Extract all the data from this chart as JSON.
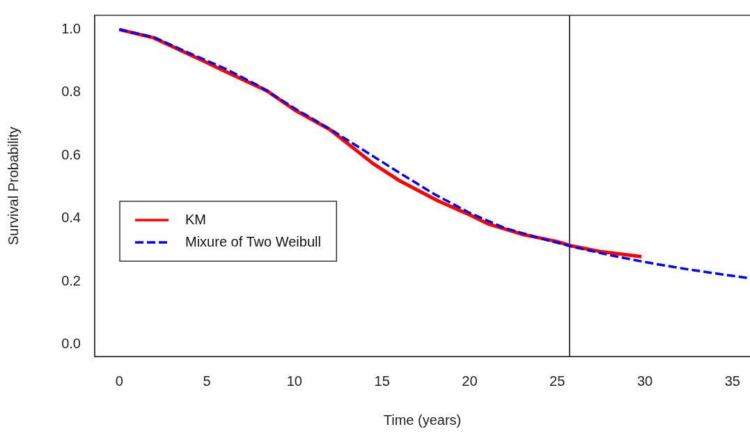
{
  "chart_data": {
    "type": "line",
    "xlabel": "Time (years)",
    "ylabel": "Survival Probability",
    "xlim": [
      -1.4,
      36
    ],
    "xticks": [
      0,
      5,
      10,
      15,
      20,
      25,
      30,
      35
    ],
    "ylim": [
      -0.038,
      1.045
    ],
    "yticks": [
      {
        "value": 0,
        "label": "0.0"
      },
      {
        "value": 0.2,
        "label": "0.2"
      },
      {
        "value": 0.4,
        "label": "0.4"
      },
      {
        "value": 0.6,
        "label": "0.6"
      },
      {
        "value": 0.8,
        "label": "0.8"
      },
      {
        "value": 1,
        "label": "1.0"
      }
    ],
    "grid": false,
    "legend": "left",
    "marker": "none",
    "series": [
      {
        "name": "KM",
        "color": "#ff0000",
        "line_style": "solid",
        "x": [
          0,
          1.94,
          4.84,
          6.0,
          8.41,
          10,
          12,
          14.5,
          16,
          18.2,
          20,
          21.1,
          23,
          25.0,
          25.75,
          27.4,
          29.8
        ],
        "values": [
          1.0,
          0.974,
          0.899,
          0.868,
          0.806,
          0.745,
          0.683,
          0.574,
          0.52,
          0.456,
          0.412,
          0.382,
          0.35,
          0.327,
          0.314,
          0.296,
          0.279
        ]
      },
      {
        "name": "Mixure of Two Weibull",
        "color": "#0000ff",
        "line_style": "dashed",
        "x": [
          0,
          2,
          4,
          6,
          8,
          10,
          12,
          14,
          16,
          18,
          20,
          22,
          24,
          26,
          28,
          30,
          32,
          34,
          35.95
        ],
        "values": [
          1.0,
          0.975,
          0.925,
          0.877,
          0.82,
          0.75,
          0.685,
          0.615,
          0.545,
          0.477,
          0.418,
          0.37,
          0.338,
          0.309,
          0.284,
          0.262,
          0.243,
          0.226,
          0.211
        ]
      }
    ],
    "ref_lines": [
      {
        "axis": "x",
        "value": 25.7,
        "color": "#000000"
      }
    ]
  }
}
